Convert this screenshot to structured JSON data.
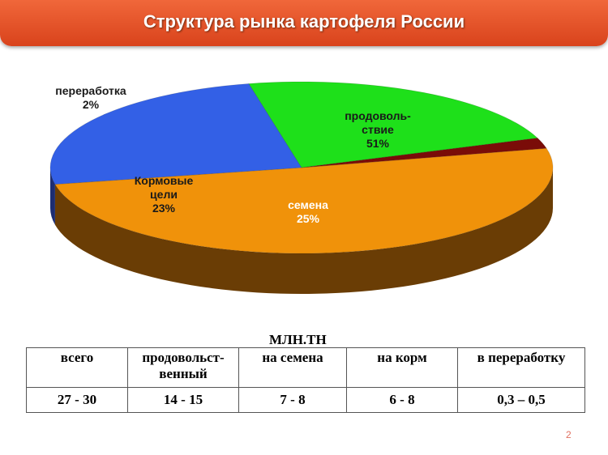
{
  "title": "Структура рынка картофеля России",
  "chart_data": {
    "type": "pie",
    "slices": [
      {
        "name": "продоволь-ствие",
        "label_lines": [
          "продоволь-",
          "ствие",
          "51%"
        ],
        "value": 51,
        "color": "#f0920a",
        "side_color": "#6a3d05",
        "label_color": "#1a1a1a"
      },
      {
        "name": "семена",
        "label_lines": [
          "семена",
          "25%"
        ],
        "value": 25,
        "color": "#3360e6",
        "side_color": "#1d2d72",
        "label_color": "#ffffff"
      },
      {
        "name": "Кормовые цели",
        "label_lines": [
          "Кормовые",
          "цели",
          "23%"
        ],
        "value": 23,
        "color": "#1ee01a",
        "side_color": "#16b814",
        "label_color": "#1a1a1a"
      },
      {
        "name": "переработка",
        "label_lines": [
          "переработка",
          "2%"
        ],
        "value": 2,
        "color": "#7a0c08",
        "side_color": "#4a0504",
        "label_color": "#1a1a1a"
      }
    ]
  },
  "table": {
    "units": "МЛН.ТН",
    "headers": [
      "всего",
      "продовольст-\nвенный",
      "на семена",
      "на корм",
      "в переработку"
    ],
    "values": [
      "27 - 30",
      "14 - 15",
      "7 - 8",
      "6 - 8",
      "0,3 – 0,5"
    ]
  },
  "page_number": "2"
}
